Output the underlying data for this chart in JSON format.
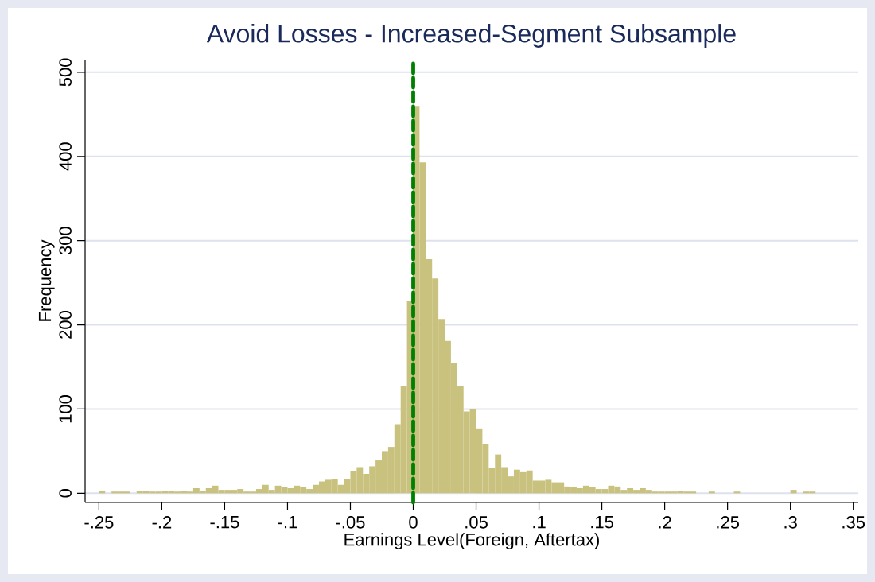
{
  "chart_data": {
    "type": "histogram",
    "title": "Avoid Losses - Increased-Segment Subsample",
    "xlabel": "Earnings Level(Foreign, Aftertax)",
    "ylabel": "Frequency",
    "bins": [
      -0.25,
      -0.245,
      -0.24,
      -0.235,
      -0.23,
      -0.225,
      -0.22,
      -0.215,
      -0.21,
      -0.205,
      -0.2,
      -0.195,
      -0.19,
      -0.185,
      -0.18,
      -0.175,
      -0.17,
      -0.165,
      -0.16,
      -0.155,
      -0.15,
      -0.145,
      -0.14,
      -0.135,
      -0.13,
      -0.125,
      -0.12,
      -0.115,
      -0.11,
      -0.105,
      -0.1,
      -0.095,
      -0.09,
      -0.085,
      -0.08,
      -0.075,
      -0.07,
      -0.065,
      -0.06,
      -0.055,
      -0.05,
      -0.045,
      -0.04,
      -0.035,
      -0.03,
      -0.025,
      -0.02,
      -0.015,
      -0.01,
      -0.005,
      0,
      0.005,
      0.01,
      0.015,
      0.02,
      0.025,
      0.03,
      0.035,
      0.04,
      0.045,
      0.05,
      0.055,
      0.06,
      0.065,
      0.07,
      0.075,
      0.08,
      0.085,
      0.09,
      0.095,
      0.1,
      0.105,
      0.11,
      0.115,
      0.12,
      0.125,
      0.13,
      0.135,
      0.14,
      0.145,
      0.15,
      0.155,
      0.16,
      0.165,
      0.17,
      0.175,
      0.18,
      0.185,
      0.19,
      0.195,
      0.2,
      0.205,
      0.21,
      0.215,
      0.22,
      0.225,
      0.23,
      0.235,
      0.24,
      0.245,
      0.25,
      0.255,
      0.26,
      0.265,
      0.27,
      0.275,
      0.28,
      0.285,
      0.29,
      0.295,
      0.3,
      0.305,
      0.31,
      0.315,
      0.32
    ],
    "values": [
      3,
      0,
      2,
      2,
      2,
      0,
      3,
      3,
      2,
      2,
      3,
      3,
      2,
      3,
      2,
      6,
      3,
      6,
      9,
      4,
      4,
      4,
      5,
      2,
      2,
      5,
      10,
      4,
      9,
      7,
      6,
      9,
      7,
      5,
      10,
      14,
      16,
      17,
      10,
      17,
      26,
      31,
      23,
      32,
      39,
      50,
      55,
      82,
      127,
      228,
      460,
      393,
      278,
      255,
      207,
      181,
      155,
      127,
      97,
      100,
      77,
      58,
      30,
      46,
      31,
      20,
      28,
      25,
      27,
      15,
      15,
      16,
      13,
      13,
      8,
      7,
      6,
      9,
      7,
      5,
      5,
      9,
      8,
      4,
      6,
      4,
      6,
      4,
      2,
      2,
      2,
      2,
      3,
      2,
      2,
      0,
      0,
      2,
      0,
      0,
      0,
      2,
      0,
      0,
      0,
      0,
      0,
      0,
      0,
      0,
      4,
      0,
      2,
      2
    ],
    "color": "#c9c27f",
    "xlim": [
      -0.261,
      0.354
    ],
    "ylim": [
      -11,
      515
    ],
    "xticks": [
      {
        "value": -0.25,
        "label": "-.25"
      },
      {
        "value": -0.2,
        "label": "-.2"
      },
      {
        "value": -0.15,
        "label": "-.15"
      },
      {
        "value": -0.1,
        "label": "-.1"
      },
      {
        "value": -0.05,
        "label": "-.05"
      },
      0,
      {
        "value": 0.05,
        "label": ".05"
      },
      {
        "value": 0.1,
        "label": ".1"
      },
      {
        "value": 0.15,
        "label": ".15"
      },
      {
        "value": 0.2,
        "label": ".2"
      },
      {
        "value": 0.25,
        "label": ".25"
      },
      {
        "value": 0.3,
        "label": ".3"
      },
      {
        "value": 0.35,
        "label": ".35"
      }
    ],
    "yticks": [
      0,
      100,
      200,
      300,
      400,
      500
    ],
    "grid": "y",
    "ref_lines": [
      {
        "axis": "x",
        "value": 0,
        "color": "#008000",
        "line_style": "dashed"
      }
    ]
  }
}
